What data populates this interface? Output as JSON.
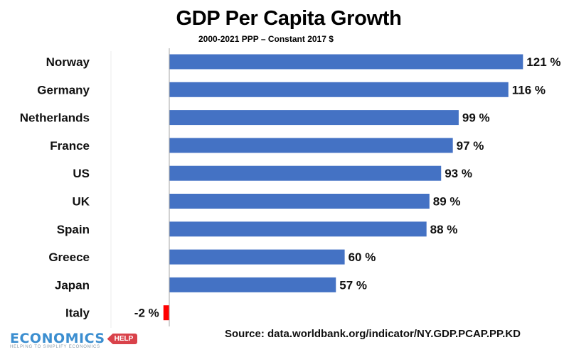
{
  "chart_data": {
    "type": "bar",
    "orientation": "horizontal",
    "title": "GDP Per Capita Growth",
    "subtitle": "2000-2021 PPP – Constant 2017 $",
    "categories": [
      "Norway",
      "Germany",
      "Netherlands",
      "France",
      "US",
      "UK",
      "Spain",
      "Greece",
      "Japan",
      "Italy"
    ],
    "values": [
      121,
      116,
      99,
      97,
      93,
      89,
      88,
      60,
      57,
      -2
    ],
    "data_labels": [
      "121 %",
      "116 %",
      "99 %",
      "97 %",
      "93 %",
      "89 %",
      "88 %",
      "60 %",
      "57 %",
      "-2 %"
    ],
    "unit": "%",
    "xlabel": "",
    "ylabel": "",
    "xlim": [
      -2,
      121
    ],
    "grid": false,
    "legend": "none",
    "colors": {
      "positive": "#4472c4",
      "negative": "#ff0000"
    }
  },
  "footer": {
    "source": "Source: data.worldbank.org/indicator/NY.GDP.PCAP.PP.KD",
    "logo_brand": "ECONOMICS",
    "logo_tag": "HELP",
    "logo_tagline": "HELPING TO SIMPLIFY ECONOMICS"
  }
}
